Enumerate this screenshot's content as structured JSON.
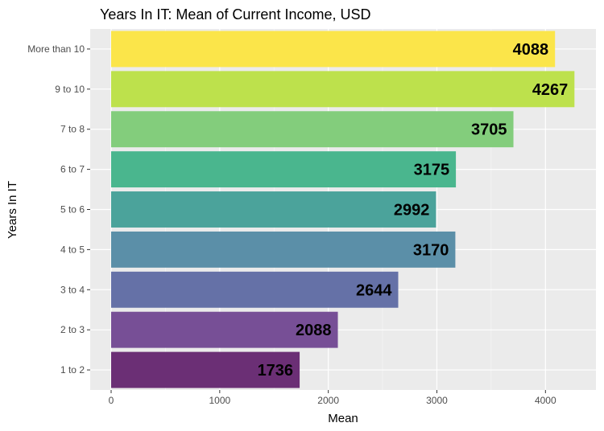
{
  "chart_data": {
    "type": "bar",
    "orientation": "horizontal",
    "title": "Years In IT: Mean of Current Income, USD",
    "xlabel": "Mean",
    "ylabel": "Years In IT",
    "categories": [
      "1 to 2",
      "2 to 3",
      "3 to 4",
      "4 to 5",
      "5 to 6",
      "6 to 7",
      "7 to 8",
      "9 to 10",
      "More than 10"
    ],
    "values": [
      1736,
      2088,
      2644,
      3170,
      2992,
      3175,
      3705,
      4267,
      4088
    ],
    "data_labels": [
      "1736",
      "2088",
      "2644",
      "3170",
      "2992",
      "3175",
      "3705",
      "4267",
      "4088"
    ],
    "xlim": [
      -230,
      4500
    ],
    "xticks": [
      0,
      1000,
      2000,
      3000,
      4000
    ],
    "xtick_labels": [
      "0",
      "1000",
      "2000",
      "3000",
      "4000"
    ],
    "colors": [
      "#6b2f75",
      "#774f96",
      "#6571a7",
      "#5b8fa8",
      "#4ba39b",
      "#4ab68e",
      "#83cd7c",
      "#bde14c",
      "#fbe54a"
    ],
    "grid": true,
    "legend": "none",
    "panel_background": "#ebebeb"
  }
}
